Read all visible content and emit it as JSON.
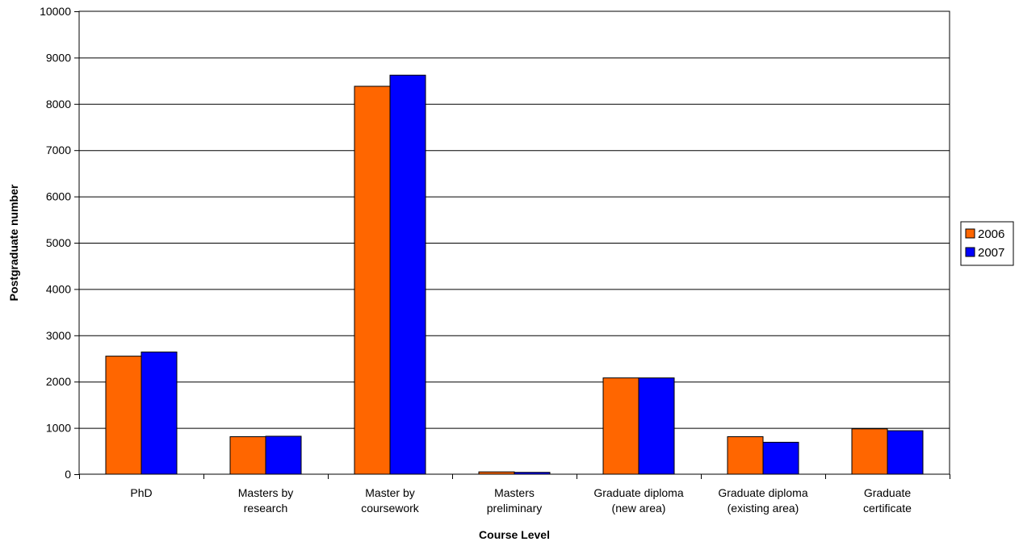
{
  "chart_data": {
    "type": "bar",
    "title": "",
    "xlabel": "Course Level",
    "ylabel": "Postgraduate number",
    "ylim": [
      0,
      10000
    ],
    "yticks": [
      0,
      1000,
      2000,
      3000,
      4000,
      5000,
      6000,
      7000,
      8000,
      9000,
      10000
    ],
    "grid": true,
    "legend_position": "right",
    "categories": [
      [
        "PhD"
      ],
      [
        "Masters by",
        "research"
      ],
      [
        "Master by",
        "coursework"
      ],
      [
        "Masters",
        "preliminary"
      ],
      [
        "Graduate diploma",
        "(new area)"
      ],
      [
        "Graduate diploma",
        "(existing area)"
      ],
      [
        "Graduate",
        "certificate"
      ]
    ],
    "series": [
      {
        "name": "2006",
        "color": "#FF6600",
        "values": [
          2550,
          810,
          8380,
          50,
          2080,
          810,
          980
        ]
      },
      {
        "name": "2007",
        "color": "#0000FF",
        "values": [
          2640,
          820,
          8620,
          40,
          2080,
          690,
          940
        ]
      }
    ]
  }
}
